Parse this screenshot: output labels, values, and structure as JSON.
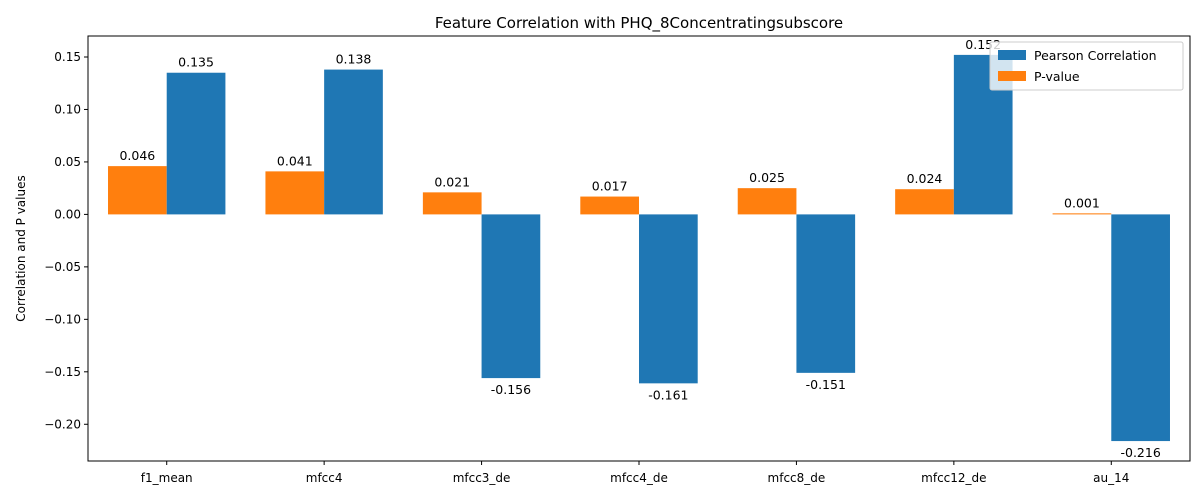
{
  "chart_data": {
    "type": "bar",
    "title": "Feature Correlation with PHQ_8Concentratingsubscore",
    "xlabel": "",
    "ylabel": "Correlation and P values",
    "categories": [
      "f1_mean",
      "mfcc4",
      "mfcc3_de",
      "mfcc4_de",
      "mfcc8_de",
      "mfcc12_de",
      "au_14"
    ],
    "series": [
      {
        "name": "P-value",
        "color": "#ff7f0e",
        "values": [
          0.046,
          0.041,
          0.021,
          0.017,
          0.025,
          0.024,
          0.001
        ],
        "labels": [
          "0.046",
          "0.041",
          "0.021",
          "0.017",
          "0.025",
          "0.024",
          "0.001"
        ]
      },
      {
        "name": "Pearson Correlation",
        "color": "#1f77b4",
        "values": [
          0.135,
          0.138,
          -0.156,
          -0.161,
          -0.151,
          0.152,
          -0.216
        ],
        "labels": [
          "0.135",
          "0.138",
          "-0.156",
          "-0.161",
          "-0.151",
          "0.152",
          "-0.216"
        ]
      }
    ],
    "ylim": [
      -0.235,
      0.17
    ],
    "yticks": [
      0.15,
      0.1,
      0.05,
      0.0,
      -0.05,
      -0.1,
      -0.15,
      -0.2
    ],
    "ytick_labels": [
      "0.15",
      "0.10",
      "0.05",
      "0.00",
      "−0.05",
      "−0.10",
      "−0.15",
      "−0.20"
    ],
    "legend_order": [
      "Pearson Correlation",
      "P-value"
    ],
    "legend_position": "top-right",
    "grid": false
  }
}
